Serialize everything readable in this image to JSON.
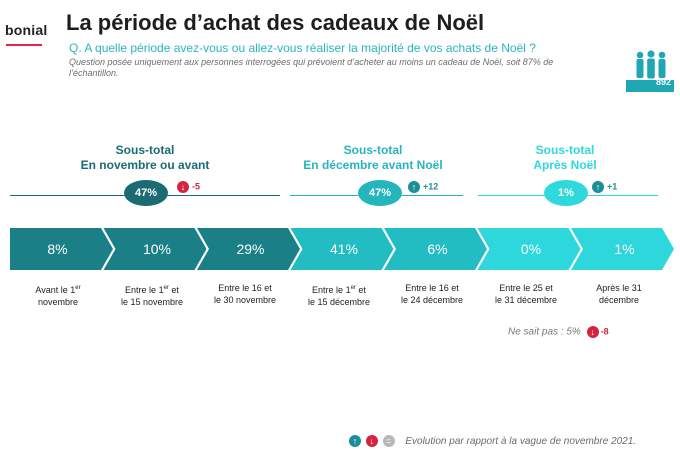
{
  "logo": {
    "text": "bonial"
  },
  "header": {
    "title": "La période d’achat des cadeaux de Noël",
    "question": "Q. A quelle période avez-vous ou allez-vous réaliser la majorité de vos achats de Noël ?",
    "note": "Question posée uniquement aux personnes interrogées qui prévoient d’acheter au moins un cadeau de Noël, soit 87% de l’échantillon."
  },
  "badge": {
    "count": "892",
    "label": "personnes"
  },
  "subtotals": [
    {
      "line1": "Sous-total",
      "line2": "En novembre ou avant",
      "value": "47%",
      "evolution": "-5",
      "direction": "down",
      "color": "#1a6b73"
    },
    {
      "line1": "Sous-total",
      "line2": "En décembre avant Noël",
      "value": "47%",
      "evolution": "+12",
      "direction": "up",
      "color": "#25b5bd"
    },
    {
      "line1": "Sous-total",
      "line2": "Après Noël",
      "value": "1%",
      "evolution": "+1",
      "direction": "up",
      "color": "#2fd8dc"
    }
  ],
  "chart_data": {
    "type": "bar",
    "categories": [
      "Avant le 1er novembre",
      "Entre le 1er et le 15 novembre",
      "Entre le 16 et le 30 novembre",
      "Entre le 1er et le 15 décembre",
      "Entre le 16 et le 24 décembre",
      "Entre le 25 et le 31 décembre",
      "Après le 31 décembre"
    ],
    "values": [
      8,
      10,
      29,
      41,
      6,
      0,
      1
    ],
    "labels": [
      "8%",
      "10%",
      "29%",
      "41%",
      "6%",
      "0%",
      "1%"
    ],
    "colors": [
      "#1a7f87",
      "#1a7f87",
      "#1a7f87",
      "#22bcc3",
      "#22bcc3",
      "#2dd7db",
      "#2dd7db"
    ],
    "unit": "%",
    "dont_know": {
      "label": "Ne sait pas : 5%",
      "evolution": "-8"
    }
  },
  "legend": {
    "up_icon": "arrow-up-icon",
    "down_icon": "arrow-down-icon",
    "equal_icon": "equal-icon",
    "text": "Evolution par rapport à la vague de novembre 2021."
  }
}
